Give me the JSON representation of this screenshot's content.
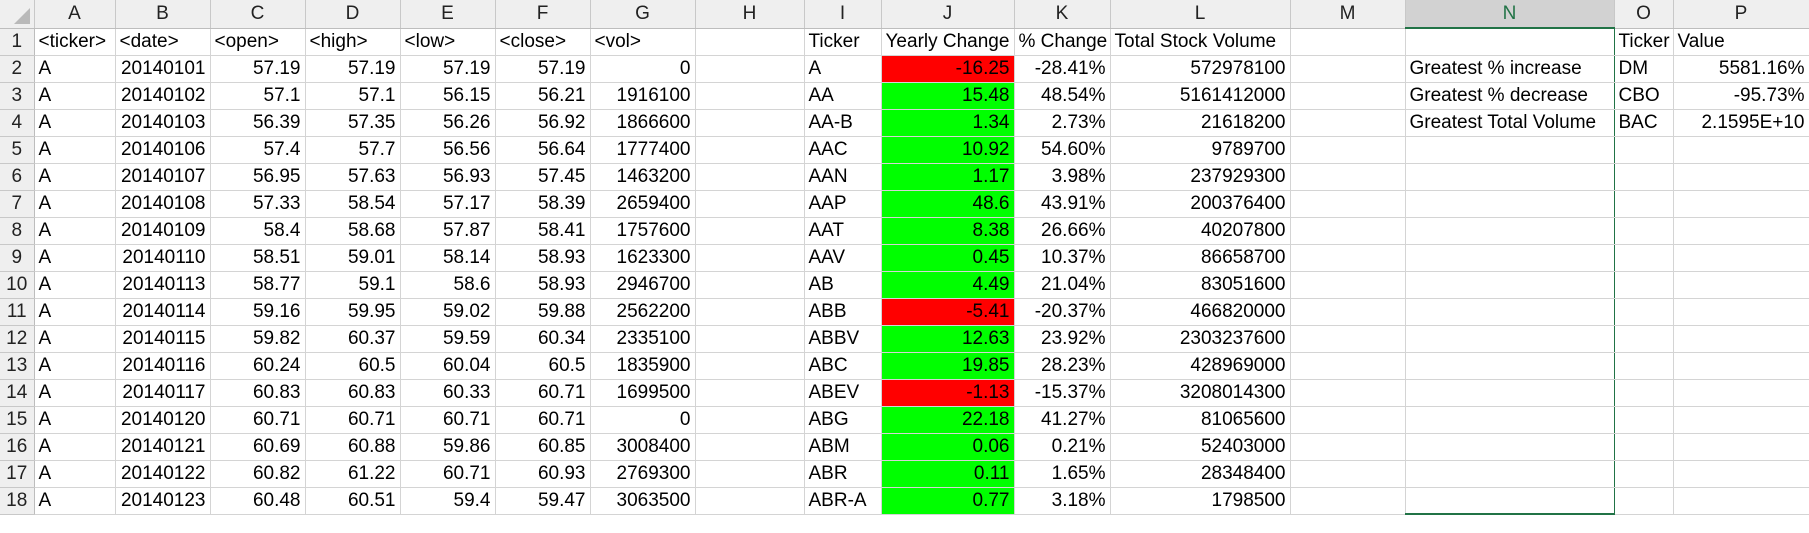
{
  "columns": [
    "A",
    "B",
    "C",
    "D",
    "E",
    "F",
    "G",
    "H",
    "I",
    "J",
    "K",
    "L",
    "M",
    "N",
    "O",
    "P"
  ],
  "colors": {
    "negative_fill": "#ff0000",
    "positive_fill": "#00ff00",
    "header_bg": "#efefef",
    "selected_header_bg": "#d2d2d2",
    "selection_accent": "#217346",
    "gridline": "#d4d4d4"
  },
  "selected_column": "N",
  "rows": [
    {
      "num": "1",
      "cells": [
        "<ticker>",
        "<date>",
        "<open>",
        "<high>",
        "<low>",
        "<close>",
        "<vol>",
        "",
        "Ticker",
        "Yearly Change",
        "% Change",
        "Total Stock Volume",
        "",
        "",
        "Ticker",
        "Value"
      ],
      "fill": ""
    },
    {
      "num": "2",
      "cells": [
        "A",
        "20140101",
        "57.19",
        "57.19",
        "57.19",
        "57.19",
        "0",
        "",
        "A",
        "-16.25",
        "-28.41%",
        "572978100",
        "",
        "Greatest % increase",
        "DM",
        "5581.16%"
      ],
      "fill": "negative"
    },
    {
      "num": "3",
      "cells": [
        "A",
        "20140102",
        "57.1",
        "57.1",
        "56.15",
        "56.21",
        "1916100",
        "",
        "AA",
        "15.48",
        "48.54%",
        "5161412000",
        "",
        "Greatest % decrease",
        "CBO",
        "-95.73%"
      ],
      "fill": "positive"
    },
    {
      "num": "4",
      "cells": [
        "A",
        "20140103",
        "56.39",
        "57.35",
        "56.26",
        "56.92",
        "1866600",
        "",
        "AA-B",
        "1.34",
        "2.73%",
        "21618200",
        "",
        "Greatest Total Volume",
        "BAC",
        "2.1595E+10"
      ],
      "fill": "positive"
    },
    {
      "num": "5",
      "cells": [
        "A",
        "20140106",
        "57.4",
        "57.7",
        "56.56",
        "56.64",
        "1777400",
        "",
        "AAC",
        "10.92",
        "54.60%",
        "9789700",
        "",
        "",
        "",
        ""
      ],
      "fill": "positive"
    },
    {
      "num": "6",
      "cells": [
        "A",
        "20140107",
        "56.95",
        "57.63",
        "56.93",
        "57.45",
        "1463200",
        "",
        "AAN",
        "1.17",
        "3.98%",
        "237929300",
        "",
        "",
        "",
        ""
      ],
      "fill": "positive"
    },
    {
      "num": "7",
      "cells": [
        "A",
        "20140108",
        "57.33",
        "58.54",
        "57.17",
        "58.39",
        "2659400",
        "",
        "AAP",
        "48.6",
        "43.91%",
        "200376400",
        "",
        "",
        "",
        ""
      ],
      "fill": "positive"
    },
    {
      "num": "8",
      "cells": [
        "A",
        "20140109",
        "58.4",
        "58.68",
        "57.87",
        "58.41",
        "1757600",
        "",
        "AAT",
        "8.38",
        "26.66%",
        "40207800",
        "",
        "",
        "",
        ""
      ],
      "fill": "positive"
    },
    {
      "num": "9",
      "cells": [
        "A",
        "20140110",
        "58.51",
        "59.01",
        "58.14",
        "58.93",
        "1623300",
        "",
        "AAV",
        "0.45",
        "10.37%",
        "86658700",
        "",
        "",
        "",
        ""
      ],
      "fill": "positive"
    },
    {
      "num": "10",
      "cells": [
        "A",
        "20140113",
        "58.77",
        "59.1",
        "58.6",
        "58.93",
        "2946700",
        "",
        "AB",
        "4.49",
        "21.04%",
        "83051600",
        "",
        "",
        "",
        ""
      ],
      "fill": "positive"
    },
    {
      "num": "11",
      "cells": [
        "A",
        "20140114",
        "59.16",
        "59.95",
        "59.02",
        "59.88",
        "2562200",
        "",
        "ABB",
        "-5.41",
        "-20.37%",
        "466820000",
        "",
        "",
        "",
        ""
      ],
      "fill": "negative"
    },
    {
      "num": "12",
      "cells": [
        "A",
        "20140115",
        "59.82",
        "60.37",
        "59.59",
        "60.34",
        "2335100",
        "",
        "ABBV",
        "12.63",
        "23.92%",
        "2303237600",
        "",
        "",
        "",
        ""
      ],
      "fill": "positive"
    },
    {
      "num": "13",
      "cells": [
        "A",
        "20140116",
        "60.24",
        "60.5",
        "60.04",
        "60.5",
        "1835900",
        "",
        "ABC",
        "19.85",
        "28.23%",
        "428969000",
        "",
        "",
        "",
        ""
      ],
      "fill": "positive"
    },
    {
      "num": "14",
      "cells": [
        "A",
        "20140117",
        "60.83",
        "60.83",
        "60.33",
        "60.71",
        "1699500",
        "",
        "ABEV",
        "-1.13",
        "-15.37%",
        "3208014300",
        "",
        "",
        "",
        ""
      ],
      "fill": "negative"
    },
    {
      "num": "15",
      "cells": [
        "A",
        "20140120",
        "60.71",
        "60.71",
        "60.71",
        "60.71",
        "0",
        "",
        "ABG",
        "22.18",
        "41.27%",
        "81065600",
        "",
        "",
        "",
        ""
      ],
      "fill": "positive"
    },
    {
      "num": "16",
      "cells": [
        "A",
        "20140121",
        "60.69",
        "60.88",
        "59.86",
        "60.85",
        "3008400",
        "",
        "ABM",
        "0.06",
        "0.21%",
        "52403000",
        "",
        "",
        "",
        ""
      ],
      "fill": "positive"
    },
    {
      "num": "17",
      "cells": [
        "A",
        "20140122",
        "60.82",
        "61.22",
        "60.71",
        "60.93",
        "2769300",
        "",
        "ABR",
        "0.11",
        "1.65%",
        "28348400",
        "",
        "",
        "",
        ""
      ],
      "fill": "positive"
    },
    {
      "num": "18",
      "cells": [
        "A",
        "20140123",
        "60.48",
        "60.51",
        "59.4",
        "59.47",
        "3063500",
        "",
        "ABR-A",
        "0.77",
        "3.18%",
        "1798500",
        "",
        "",
        "",
        ""
      ],
      "fill": "positive"
    }
  ]
}
